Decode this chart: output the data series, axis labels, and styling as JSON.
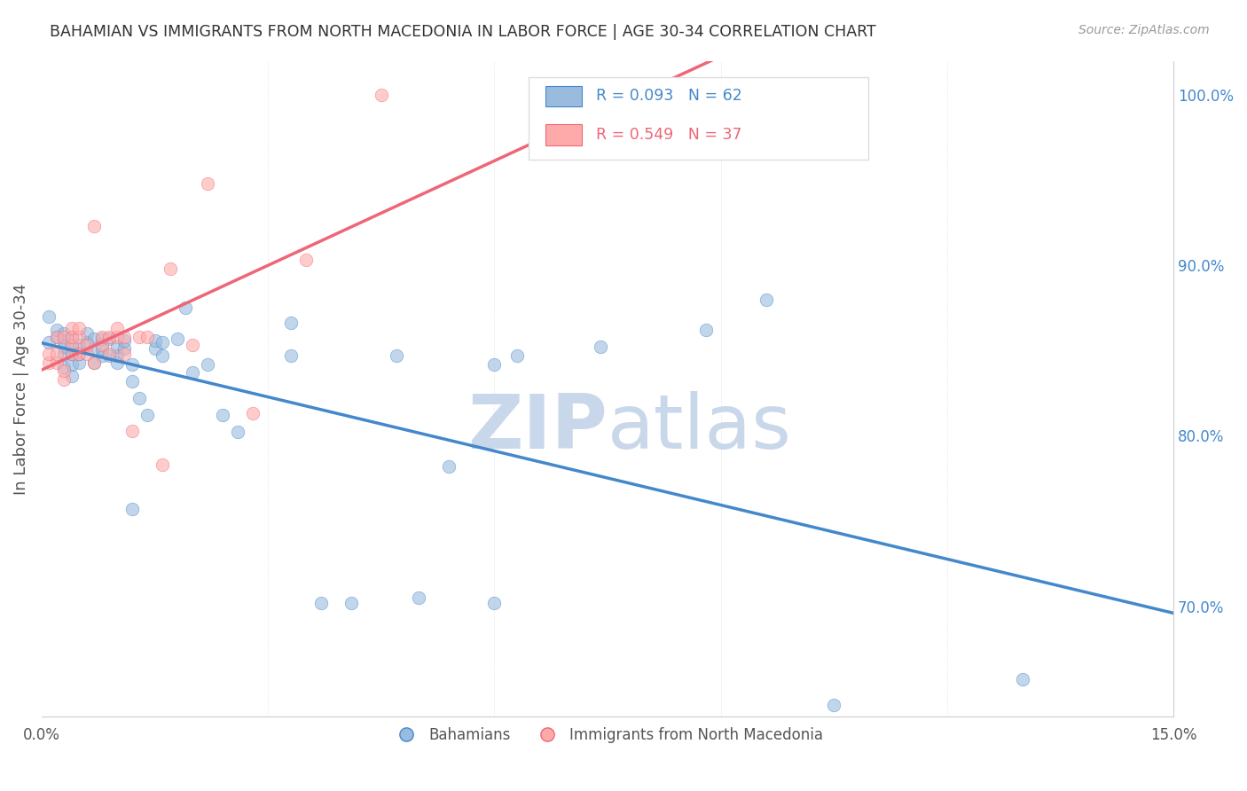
{
  "title": "BAHAMIAN VS IMMIGRANTS FROM NORTH MACEDONIA IN LABOR FORCE | AGE 30-34 CORRELATION CHART",
  "source": "Source: ZipAtlas.com",
  "ylabel": "In Labor Force | Age 30-34",
  "xlim": [
    0.0,
    0.15
  ],
  "ylim": [
    0.635,
    1.02
  ],
  "yticks": [
    0.7,
    0.8,
    0.9,
    1.0
  ],
  "ytick_labels": [
    "70.0%",
    "80.0%",
    "90.0%",
    "100.0%"
  ],
  "blue_R": 0.093,
  "blue_N": 62,
  "pink_R": 0.549,
  "pink_N": 37,
  "blue_color": "#99BBDD",
  "pink_color": "#FFAAAA",
  "blue_line_color": "#4488CC",
  "pink_line_color": "#EE6677",
  "background_color": "#FFFFFF",
  "grid_color": "#CCCCCC",
  "title_color": "#333333",
  "watermark_color": "#C8D8EA",
  "blue_scatter_x": [
    0.001,
    0.001,
    0.002,
    0.002,
    0.003,
    0.003,
    0.003,
    0.003,
    0.003,
    0.004,
    0.004,
    0.004,
    0.004,
    0.004,
    0.005,
    0.005,
    0.005,
    0.006,
    0.006,
    0.007,
    0.007,
    0.007,
    0.008,
    0.008,
    0.008,
    0.009,
    0.009,
    0.01,
    0.01,
    0.01,
    0.011,
    0.011,
    0.012,
    0.012,
    0.013,
    0.014,
    0.015,
    0.015,
    0.016,
    0.016,
    0.018,
    0.019,
    0.02,
    0.022,
    0.024,
    0.026,
    0.033,
    0.033,
    0.037,
    0.041,
    0.047,
    0.05,
    0.054,
    0.06,
    0.063,
    0.074,
    0.088,
    0.096,
    0.105,
    0.13,
    0.012,
    0.06
  ],
  "blue_scatter_y": [
    0.855,
    0.87,
    0.858,
    0.862,
    0.84,
    0.848,
    0.852,
    0.856,
    0.86,
    0.835,
    0.842,
    0.848,
    0.852,
    0.858,
    0.843,
    0.848,
    0.853,
    0.855,
    0.86,
    0.843,
    0.851,
    0.857,
    0.847,
    0.851,
    0.857,
    0.847,
    0.857,
    0.843,
    0.847,
    0.852,
    0.851,
    0.856,
    0.832,
    0.842,
    0.822,
    0.812,
    0.851,
    0.856,
    0.847,
    0.855,
    0.857,
    0.875,
    0.837,
    0.842,
    0.812,
    0.802,
    0.866,
    0.847,
    0.702,
    0.702,
    0.847,
    0.705,
    0.782,
    0.842,
    0.847,
    0.852,
    0.862,
    0.88,
    0.642,
    0.657,
    0.757,
    0.702
  ],
  "pink_scatter_x": [
    0.001,
    0.001,
    0.002,
    0.002,
    0.002,
    0.003,
    0.003,
    0.003,
    0.004,
    0.004,
    0.004,
    0.004,
    0.005,
    0.005,
    0.005,
    0.006,
    0.006,
    0.007,
    0.007,
    0.008,
    0.008,
    0.009,
    0.009,
    0.01,
    0.01,
    0.011,
    0.011,
    0.012,
    0.013,
    0.014,
    0.016,
    0.017,
    0.02,
    0.022,
    0.028,
    0.035,
    0.045
  ],
  "pink_scatter_y": [
    0.843,
    0.848,
    0.843,
    0.848,
    0.858,
    0.833,
    0.838,
    0.858,
    0.848,
    0.853,
    0.858,
    0.863,
    0.848,
    0.858,
    0.863,
    0.848,
    0.853,
    0.843,
    0.923,
    0.853,
    0.858,
    0.848,
    0.858,
    0.858,
    0.863,
    0.848,
    0.858,
    0.803,
    0.858,
    0.858,
    0.783,
    0.898,
    0.853,
    0.948,
    0.813,
    0.903,
    1.0
  ]
}
